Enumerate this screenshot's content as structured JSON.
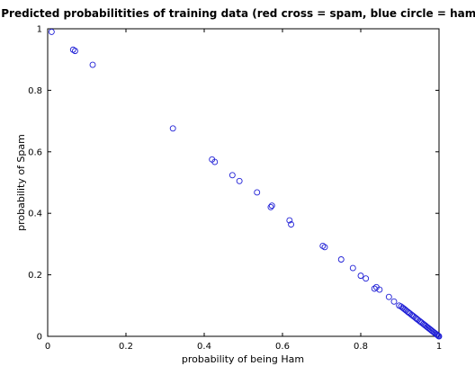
{
  "chart_data": {
    "type": "scatter",
    "title": "Predicted probabilitities of training data (red cross = spam, blue circle = ham)",
    "xlabel": "probability of being Ham",
    "ylabel": "probability of Spam",
    "xlim": [
      0,
      1
    ],
    "ylim": [
      0,
      1
    ],
    "x_ticks": [
      "0",
      "0.2",
      "0.4",
      "0.6",
      "0.8",
      "1"
    ],
    "y_ticks": [
      "0",
      "0.2",
      "0.4",
      "0.6",
      "0.8",
      "1"
    ],
    "grid": false,
    "marker": "circle",
    "marker_color": "#1f1fd6",
    "series": [
      {
        "points": [
          [
            0.01,
            0.99
          ],
          [
            0.065,
            0.932
          ],
          [
            0.07,
            0.928
          ],
          [
            0.115,
            0.883
          ],
          [
            0.32,
            0.676
          ],
          [
            0.42,
            0.575
          ],
          [
            0.427,
            0.567
          ],
          [
            0.472,
            0.524
          ],
          [
            0.49,
            0.505
          ],
          [
            0.535,
            0.468
          ],
          [
            0.57,
            0.42
          ],
          [
            0.573,
            0.425
          ],
          [
            0.618,
            0.377
          ],
          [
            0.622,
            0.364
          ],
          [
            0.703,
            0.294
          ],
          [
            0.708,
            0.29
          ],
          [
            0.75,
            0.25
          ],
          [
            0.78,
            0.222
          ],
          [
            0.8,
            0.197
          ],
          [
            0.813,
            0.188
          ],
          [
            0.835,
            0.155
          ],
          [
            0.84,
            0.16
          ],
          [
            0.848,
            0.152
          ],
          [
            0.872,
            0.128
          ],
          [
            0.885,
            0.113
          ],
          [
            0.898,
            0.1
          ],
          [
            0.903,
            0.097
          ],
          [
            0.907,
            0.093
          ],
          [
            0.91,
            0.09
          ],
          [
            0.913,
            0.087
          ],
          [
            0.916,
            0.084
          ],
          [
            0.92,
            0.08
          ],
          [
            0.923,
            0.077
          ],
          [
            0.926,
            0.074
          ],
          [
            0.93,
            0.07
          ],
          [
            0.933,
            0.067
          ],
          [
            0.936,
            0.064
          ],
          [
            0.94,
            0.06
          ],
          [
            0.943,
            0.057
          ],
          [
            0.946,
            0.054
          ],
          [
            0.95,
            0.05
          ],
          [
            0.953,
            0.047
          ],
          [
            0.956,
            0.044
          ],
          [
            0.96,
            0.04
          ],
          [
            0.963,
            0.037
          ],
          [
            0.966,
            0.034
          ],
          [
            0.969,
            0.031
          ],
          [
            0.972,
            0.028
          ],
          [
            0.975,
            0.025
          ],
          [
            0.978,
            0.022
          ],
          [
            0.981,
            0.019
          ],
          [
            0.984,
            0.016
          ],
          [
            0.987,
            0.013
          ],
          [
            0.99,
            0.01
          ],
          [
            0.993,
            0.007
          ],
          [
            0.995,
            0.005
          ],
          [
            0.997,
            0.003
          ],
          [
            0.999,
            0.001
          ],
          [
            1.0,
            0.0
          ]
        ]
      }
    ]
  }
}
